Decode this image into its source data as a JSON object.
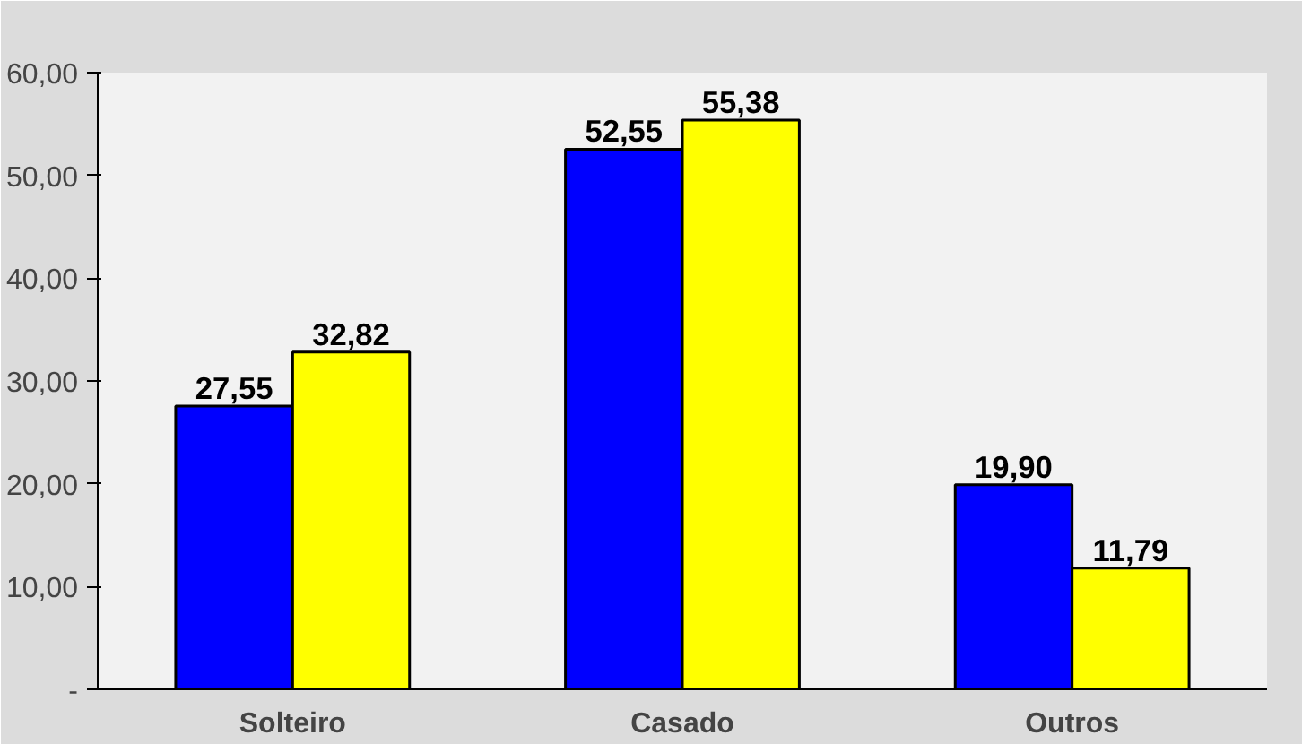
{
  "chart_data": {
    "type": "bar",
    "categories": [
      "Solteiro",
      "Casado",
      "Outros"
    ],
    "series": [
      {
        "color": "#0000ff",
        "values": [
          27.55,
          52.55,
          19.9
        ],
        "value_labels": [
          "27,55",
          "52,55",
          "19,90"
        ]
      },
      {
        "color": "#ffff00",
        "values": [
          32.82,
          55.38,
          11.79
        ],
        "value_labels": [
          "32,82",
          "55,38",
          "11,79"
        ]
      }
    ],
    "ylim": [
      0,
      60
    ],
    "yticks": [
      {
        "value": 0,
        "label": "-"
      },
      {
        "value": 10,
        "label": "10,00"
      },
      {
        "value": 20,
        "label": "20,00"
      },
      {
        "value": 30,
        "label": "30,00"
      },
      {
        "value": 40,
        "label": "40,00"
      },
      {
        "value": 50,
        "label": "50,00"
      },
      {
        "value": 60,
        "label": "60,00"
      }
    ],
    "grid": false
  }
}
